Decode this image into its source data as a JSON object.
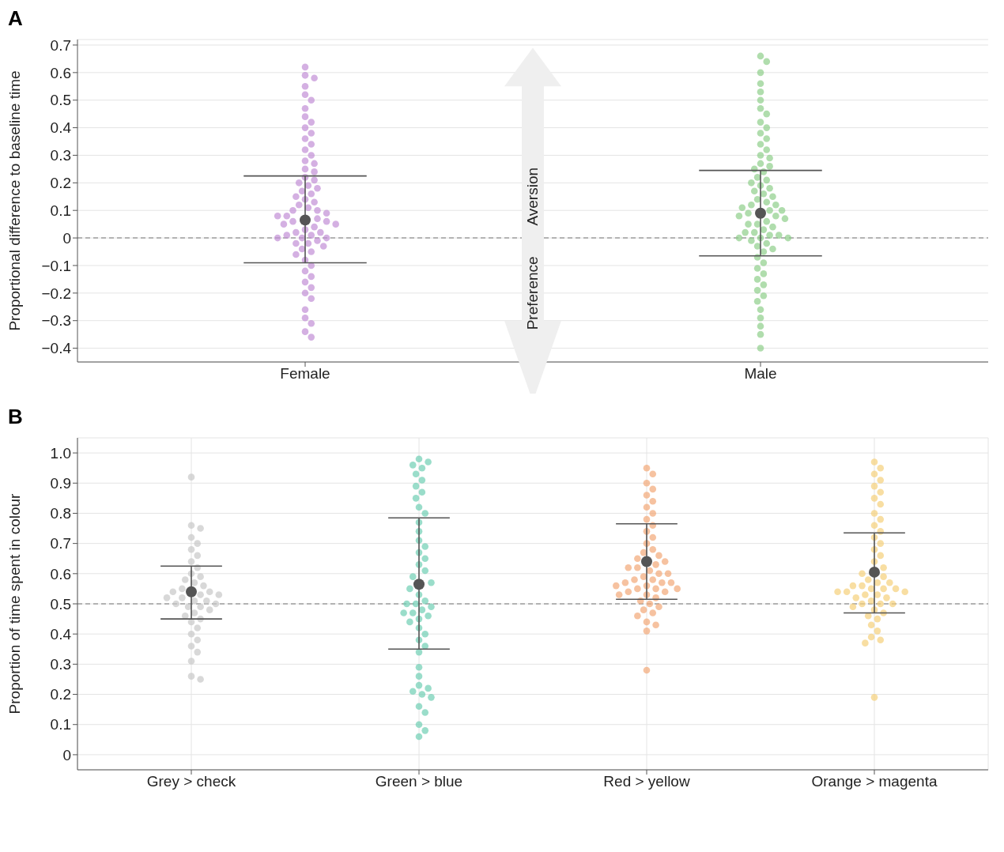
{
  "chart_data": [
    {
      "type": "scatter",
      "title": "A",
      "ylabel": "Proportional difference to baseline time",
      "categories": [
        "Female",
        "Male"
      ],
      "ylim": [
        -0.45,
        0.72
      ],
      "yticks": [
        {
          "value": -0.4,
          "label": "−0.4"
        },
        {
          "value": -0.3,
          "label": "−0.3"
        },
        {
          "value": -0.2,
          "label": "−0.2"
        },
        {
          "value": -0.1,
          "label": "−0.1"
        },
        0,
        0.1,
        0.2,
        0.3,
        0.4,
        0.5,
        0.6,
        0.7
      ],
      "grid": "y",
      "marker": "circle",
      "annotations": [
        "Aversion",
        "Preference"
      ],
      "ref_lines": [
        {
          "axis": "y",
          "value": 0,
          "color": "#9e9e9e",
          "line_style": "dashed"
        }
      ],
      "series": [
        {
          "color": "#c28fd6",
          "x": [
            "Female",
            "Female",
            "Female",
            "Female",
            "Female",
            "Female",
            "Female",
            "Female",
            "Female",
            "Female",
            "Female",
            "Female",
            "Female",
            "Female",
            "Female",
            "Female",
            "Female",
            "Female",
            "Female",
            "Female",
            "Female",
            "Female",
            "Female",
            "Female",
            "Female",
            "Female",
            "Female",
            "Female",
            "Female",
            "Female",
            "Female",
            "Female",
            "Female",
            "Female",
            "Female",
            "Female",
            "Female",
            "Female",
            "Female",
            "Female",
            "Female",
            "Female",
            "Female",
            "Female",
            "Female",
            "Female",
            "Female",
            "Female",
            "Female",
            "Female",
            "Female",
            "Female",
            "Female",
            "Female",
            "Female",
            "Female",
            "Female",
            "Female",
            "Female",
            "Female",
            "Female",
            "Female",
            "Female",
            "Female",
            "Female",
            "Female",
            "Female",
            "Female",
            "Female",
            "Female"
          ],
          "values": [
            0.62,
            0.59,
            0.58,
            0.55,
            0.52,
            0.5,
            0.47,
            0.44,
            0.42,
            0.4,
            0.38,
            0.36,
            0.34,
            0.32,
            0.3,
            0.28,
            0.27,
            0.25,
            0.24,
            0.22,
            0.21,
            0.2,
            0.19,
            0.18,
            0.17,
            0.16,
            0.15,
            0.14,
            0.13,
            0.12,
            0.11,
            0.1,
            0.09,
            0.08,
            0.08,
            0.07,
            0.06,
            0.05,
            0.04,
            0.03,
            0.02,
            0.01,
            0,
            0,
            -0.01,
            -0.02,
            -0.03,
            -0.04,
            -0.05,
            -0.06,
            -0.08,
            -0.1,
            -0.12,
            -0.14,
            -0.16,
            -0.18,
            -0.2,
            -0.22,
            -0.26,
            -0.29,
            -0.31,
            -0.34,
            -0.36,
            0.1,
            0.05,
            0.02,
            0.01,
            0,
            -0.02,
            0.06
          ]
        },
        {
          "color": "#8fcf8a",
          "x": [
            "Male",
            "Male",
            "Male",
            "Male",
            "Male",
            "Male",
            "Male",
            "Male",
            "Male",
            "Male",
            "Male",
            "Male",
            "Male",
            "Male",
            "Male",
            "Male",
            "Male",
            "Male",
            "Male",
            "Male",
            "Male",
            "Male",
            "Male",
            "Male",
            "Male",
            "Male",
            "Male",
            "Male",
            "Male",
            "Male",
            "Male",
            "Male",
            "Male",
            "Male",
            "Male",
            "Male",
            "Male",
            "Male",
            "Male",
            "Male",
            "Male",
            "Male",
            "Male",
            "Male",
            "Male",
            "Male",
            "Male",
            "Male",
            "Male",
            "Male",
            "Male",
            "Male",
            "Male",
            "Male",
            "Male",
            "Male",
            "Male",
            "Male",
            "Male",
            "Male",
            "Male",
            "Male",
            "Male",
            "Male",
            "Male",
            "Male",
            "Male",
            "Male",
            "Male",
            "Male"
          ],
          "values": [
            0.66,
            0.64,
            0.6,
            0.56,
            0.53,
            0.5,
            0.47,
            0.45,
            0.42,
            0.4,
            0.38,
            0.36,
            0.34,
            0.32,
            0.3,
            0.29,
            0.27,
            0.26,
            0.25,
            0.24,
            0.22,
            0.21,
            0.2,
            0.19,
            0.18,
            0.17,
            0.16,
            0.15,
            0.14,
            0.13,
            0.12,
            0.11,
            0.1,
            0.1,
            0.09,
            0.08,
            0.07,
            0.06,
            0.05,
            0.04,
            0.03,
            0.02,
            0.01,
            0.01,
            0,
            0,
            -0.01,
            -0.02,
            -0.03,
            -0.05,
            -0.07,
            -0.09,
            -0.11,
            -0.13,
            -0.15,
            -0.17,
            -0.19,
            -0.21,
            -0.23,
            -0.26,
            -0.29,
            -0.32,
            -0.35,
            -0.4,
            0.05,
            0.02,
            0,
            0.08,
            0.12,
            -0.04
          ]
        },
        {
          "color": "#555555",
          "x": [
            "Female",
            "Male"
          ],
          "values": [
            0.065,
            0.09
          ],
          "errors": [
            [
              -0.09,
              0.225
            ],
            [
              -0.065,
              0.245
            ]
          ]
        }
      ]
    },
    {
      "type": "scatter",
      "title": "B",
      "ylabel": "Proportion of time spent in colour",
      "categories": [
        "Grey > check",
        "Green > blue",
        "Red > yellow",
        "Orange > magenta"
      ],
      "ylim": [
        -0.05,
        1.05
      ],
      "yticks": [
        0,
        0.1,
        0.2,
        0.3,
        0.4,
        0.5,
        0.6,
        0.7,
        0.8,
        0.9,
        {
          "value": 1,
          "label": "1.0"
        }
      ],
      "grid": true,
      "marker": "circle",
      "ref_lines": [
        {
          "axis": "y",
          "value": 0.5,
          "color": "#9e9e9e",
          "line_style": "dashed"
        }
      ],
      "series": [
        {
          "color": "#c8c8c8",
          "x": [
            "Grey > check",
            "Grey > check",
            "Grey > check",
            "Grey > check",
            "Grey > check",
            "Grey > check",
            "Grey > check",
            "Grey > check",
            "Grey > check",
            "Grey > check",
            "Grey > check",
            "Grey > check",
            "Grey > check",
            "Grey > check",
            "Grey > check",
            "Grey > check",
            "Grey > check",
            "Grey > check",
            "Grey > check",
            "Grey > check",
            "Grey > check",
            "Grey > check",
            "Grey > check",
            "Grey > check",
            "Grey > check",
            "Grey > check",
            "Grey > check",
            "Grey > check",
            "Grey > check",
            "Grey > check",
            "Grey > check",
            "Grey > check",
            "Grey > check",
            "Grey > check",
            "Grey > check",
            "Grey > check",
            "Grey > check",
            "Grey > check",
            "Grey > check",
            "Grey > check"
          ],
          "values": [
            0.92,
            0.76,
            0.75,
            0.72,
            0.7,
            0.68,
            0.66,
            0.64,
            0.62,
            0.6,
            0.59,
            0.58,
            0.57,
            0.56,
            0.55,
            0.54,
            0.54,
            0.53,
            0.53,
            0.52,
            0.52,
            0.51,
            0.51,
            0.5,
            0.5,
            0.49,
            0.49,
            0.48,
            0.47,
            0.46,
            0.45,
            0.44,
            0.42,
            0.4,
            0.38,
            0.36,
            0.34,
            0.31,
            0.26,
            0.25
          ]
        },
        {
          "color": "#6fcfb4",
          "x": [
            "Green > blue",
            "Green > blue",
            "Green > blue",
            "Green > blue",
            "Green > blue",
            "Green > blue",
            "Green > blue",
            "Green > blue",
            "Green > blue",
            "Green > blue",
            "Green > blue",
            "Green > blue",
            "Green > blue",
            "Green > blue",
            "Green > blue",
            "Green > blue",
            "Green > blue",
            "Green > blue",
            "Green > blue",
            "Green > blue",
            "Green > blue",
            "Green > blue",
            "Green > blue",
            "Green > blue",
            "Green > blue",
            "Green > blue",
            "Green > blue",
            "Green > blue",
            "Green > blue",
            "Green > blue",
            "Green > blue",
            "Green > blue",
            "Green > blue",
            "Green > blue",
            "Green > blue",
            "Green > blue",
            "Green > blue",
            "Green > blue",
            "Green > blue",
            "Green > blue",
            "Green > blue",
            "Green > blue",
            "Green > blue",
            "Green > blue",
            "Green > blue",
            "Green > blue",
            "Green > blue",
            "Green > blue",
            "Green > blue",
            "Green > blue"
          ],
          "values": [
            0.98,
            0.97,
            0.96,
            0.95,
            0.93,
            0.91,
            0.89,
            0.87,
            0.85,
            0.82,
            0.8,
            0.77,
            0.74,
            0.71,
            0.69,
            0.67,
            0.65,
            0.63,
            0.61,
            0.59,
            0.57,
            0.55,
            0.53,
            0.51,
            0.5,
            0.49,
            0.48,
            0.47,
            0.46,
            0.45,
            0.44,
            0.42,
            0.4,
            0.38,
            0.36,
            0.34,
            0.29,
            0.26,
            0.23,
            0.22,
            0.21,
            0.2,
            0.19,
            0.16,
            0.14,
            0.1,
            0.08,
            0.06,
            0.47,
            0.5
          ]
        },
        {
          "color": "#f2a878",
          "x": [
            "Red > yellow",
            "Red > yellow",
            "Red > yellow",
            "Red > yellow",
            "Red > yellow",
            "Red > yellow",
            "Red > yellow",
            "Red > yellow",
            "Red > yellow",
            "Red > yellow",
            "Red > yellow",
            "Red > yellow",
            "Red > yellow",
            "Red > yellow",
            "Red > yellow",
            "Red > yellow",
            "Red > yellow",
            "Red > yellow",
            "Red > yellow",
            "Red > yellow",
            "Red > yellow",
            "Red > yellow",
            "Red > yellow",
            "Red > yellow",
            "Red > yellow",
            "Red > yellow",
            "Red > yellow",
            "Red > yellow",
            "Red > yellow",
            "Red > yellow",
            "Red > yellow",
            "Red > yellow",
            "Red > yellow",
            "Red > yellow",
            "Red > yellow",
            "Red > yellow",
            "Red > yellow",
            "Red > yellow",
            "Red > yellow",
            "Red > yellow",
            "Red > yellow",
            "Red > yellow",
            "Red > yellow",
            "Red > yellow",
            "Red > yellow",
            "Red > yellow",
            "Red > yellow",
            "Red > yellow",
            "Red > yellow",
            "Red > yellow"
          ],
          "values": [
            0.95,
            0.93,
            0.9,
            0.88,
            0.86,
            0.84,
            0.82,
            0.8,
            0.78,
            0.76,
            0.74,
            0.72,
            0.7,
            0.68,
            0.67,
            0.66,
            0.65,
            0.64,
            0.63,
            0.62,
            0.61,
            0.6,
            0.59,
            0.58,
            0.57,
            0.57,
            0.56,
            0.56,
            0.55,
            0.55,
            0.54,
            0.54,
            0.53,
            0.52,
            0.51,
            0.5,
            0.49,
            0.48,
            0.47,
            0.46,
            0.44,
            0.43,
            0.41,
            0.28,
            0.58,
            0.6,
            0.55,
            0.57,
            0.53,
            0.62
          ]
        },
        {
          "color": "#f5d07a",
          "x": [
            "Orange > magenta",
            "Orange > magenta",
            "Orange > magenta",
            "Orange > magenta",
            "Orange > magenta",
            "Orange > magenta",
            "Orange > magenta",
            "Orange > magenta",
            "Orange > magenta",
            "Orange > magenta",
            "Orange > magenta",
            "Orange > magenta",
            "Orange > magenta",
            "Orange > magenta",
            "Orange > magenta",
            "Orange > magenta",
            "Orange > magenta",
            "Orange > magenta",
            "Orange > magenta",
            "Orange > magenta",
            "Orange > magenta",
            "Orange > magenta",
            "Orange > magenta",
            "Orange > magenta",
            "Orange > magenta",
            "Orange > magenta",
            "Orange > magenta",
            "Orange > magenta",
            "Orange > magenta",
            "Orange > magenta",
            "Orange > magenta",
            "Orange > magenta",
            "Orange > magenta",
            "Orange > magenta",
            "Orange > magenta",
            "Orange > magenta",
            "Orange > magenta",
            "Orange > magenta",
            "Orange > magenta",
            "Orange > magenta",
            "Orange > magenta",
            "Orange > magenta",
            "Orange > magenta",
            "Orange > magenta",
            "Orange > magenta",
            "Orange > magenta",
            "Orange > magenta",
            "Orange > magenta",
            "Orange > magenta",
            "Orange > magenta"
          ],
          "values": [
            0.97,
            0.95,
            0.93,
            0.91,
            0.89,
            0.87,
            0.85,
            0.83,
            0.8,
            0.78,
            0.76,
            0.74,
            0.72,
            0.7,
            0.68,
            0.66,
            0.64,
            0.62,
            0.6,
            0.59,
            0.58,
            0.57,
            0.56,
            0.55,
            0.55,
            0.54,
            0.54,
            0.53,
            0.53,
            0.52,
            0.51,
            0.5,
            0.5,
            0.49,
            0.48,
            0.47,
            0.46,
            0.45,
            0.43,
            0.41,
            0.39,
            0.38,
            0.37,
            0.19,
            0.56,
            0.54,
            0.52,
            0.57,
            0.55,
            0.5
          ]
        },
        {
          "color": "#555555",
          "x": [
            "Grey > check",
            "Green > blue",
            "Red > yellow",
            "Orange > magenta"
          ],
          "values": [
            0.54,
            0.565,
            0.64,
            0.605
          ],
          "errors": [
            [
              0.45,
              0.625
            ],
            [
              0.35,
              0.785
            ],
            [
              0.515,
              0.765
            ],
            [
              0.47,
              0.735
            ]
          ]
        }
      ]
    }
  ]
}
